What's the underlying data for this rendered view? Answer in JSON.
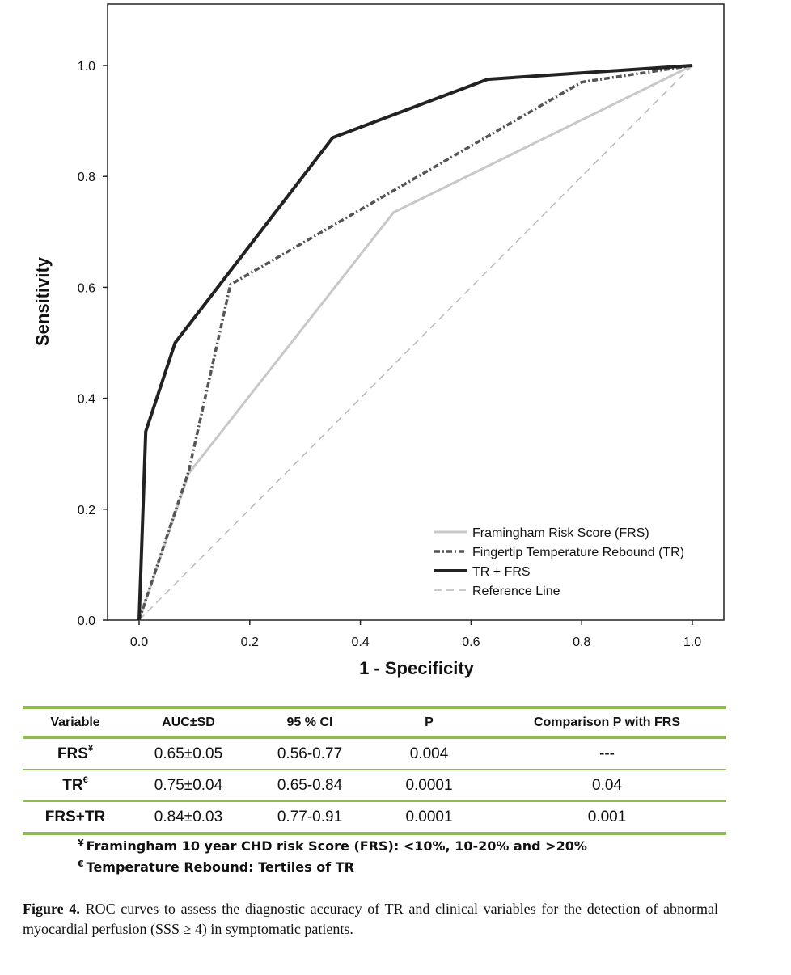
{
  "chart_data": {
    "type": "line",
    "xlabel": "1 - Specificity",
    "ylabel": "Sensitivity",
    "xlim": [
      0,
      1
    ],
    "ylim": [
      0,
      1.1
    ],
    "x_ticks": [
      "0.0",
      "0.2",
      "0.4",
      "0.6",
      "0.8",
      "1.0"
    ],
    "y_ticks": [
      "0.0",
      "0.2",
      "0.4",
      "0.6",
      "0.8",
      "1.0"
    ],
    "legend_position": "bottom-right",
    "series": [
      {
        "name": "Framingham Risk Score (FRS)",
        "style": "solid-light",
        "color": "#c8c8c8",
        "points": [
          [
            0,
            0
          ],
          [
            0.09,
            0.265
          ],
          [
            0.46,
            0.735
          ],
          [
            1.0,
            1.0
          ]
        ]
      },
      {
        "name": "Fingertip Temperature Rebound (TR)",
        "style": "dash-dot",
        "color": "#555555",
        "points": [
          [
            0,
            0
          ],
          [
            0.09,
            0.27
          ],
          [
            0.165,
            0.605
          ],
          [
            0.8,
            0.97
          ],
          [
            1.0,
            1.0
          ]
        ]
      },
      {
        "name": "TR + FRS",
        "style": "solid-heavy",
        "color": "#222222",
        "points": [
          [
            0,
            0
          ],
          [
            0.012,
            0.34
          ],
          [
            0.065,
            0.5
          ],
          [
            0.35,
            0.87
          ],
          [
            0.63,
            0.975
          ],
          [
            1.0,
            1.0
          ]
        ]
      },
      {
        "name": "Reference Line",
        "style": "dashed-light",
        "color": "#b8b8b8",
        "points": [
          [
            0,
            0
          ],
          [
            1.0,
            1.0
          ]
        ]
      }
    ]
  },
  "table": {
    "headers": [
      "Variable",
      "AUC±SD",
      "95 % CI",
      "P",
      "Comparison P with FRS"
    ],
    "rows": [
      {
        "variable": "FRS",
        "sup": "¥",
        "auc": "0.65±0.05",
        "ci": "0.56-0.77",
        "p": "0.004",
        "comparison": "---"
      },
      {
        "variable": "TR",
        "sup": "€",
        "auc": "0.75±0.04",
        "ci": "0.65-0.84",
        "p": "0.0001",
        "comparison": "0.04"
      },
      {
        "variable": "FRS+TR",
        "sup": "",
        "auc": "0.84±0.03",
        "ci": "0.77-0.91",
        "p": "0.0001",
        "comparison": "0.001"
      }
    ]
  },
  "footnotes": [
    {
      "symbol": "¥",
      "text": "Framingham 10 year CHD risk Score (FRS): <10%, 10-20% and >20%"
    },
    {
      "symbol": "€",
      "text": "Temperature Rebound: Tertiles of TR"
    }
  ],
  "caption": {
    "label": "Figure 4.",
    "text": "ROC curves to assess the diagnostic accuracy of TR and clinical variables for the detection of abnormal myocardial perfusion (SSS ≥ 4) in symptomatic patients."
  }
}
